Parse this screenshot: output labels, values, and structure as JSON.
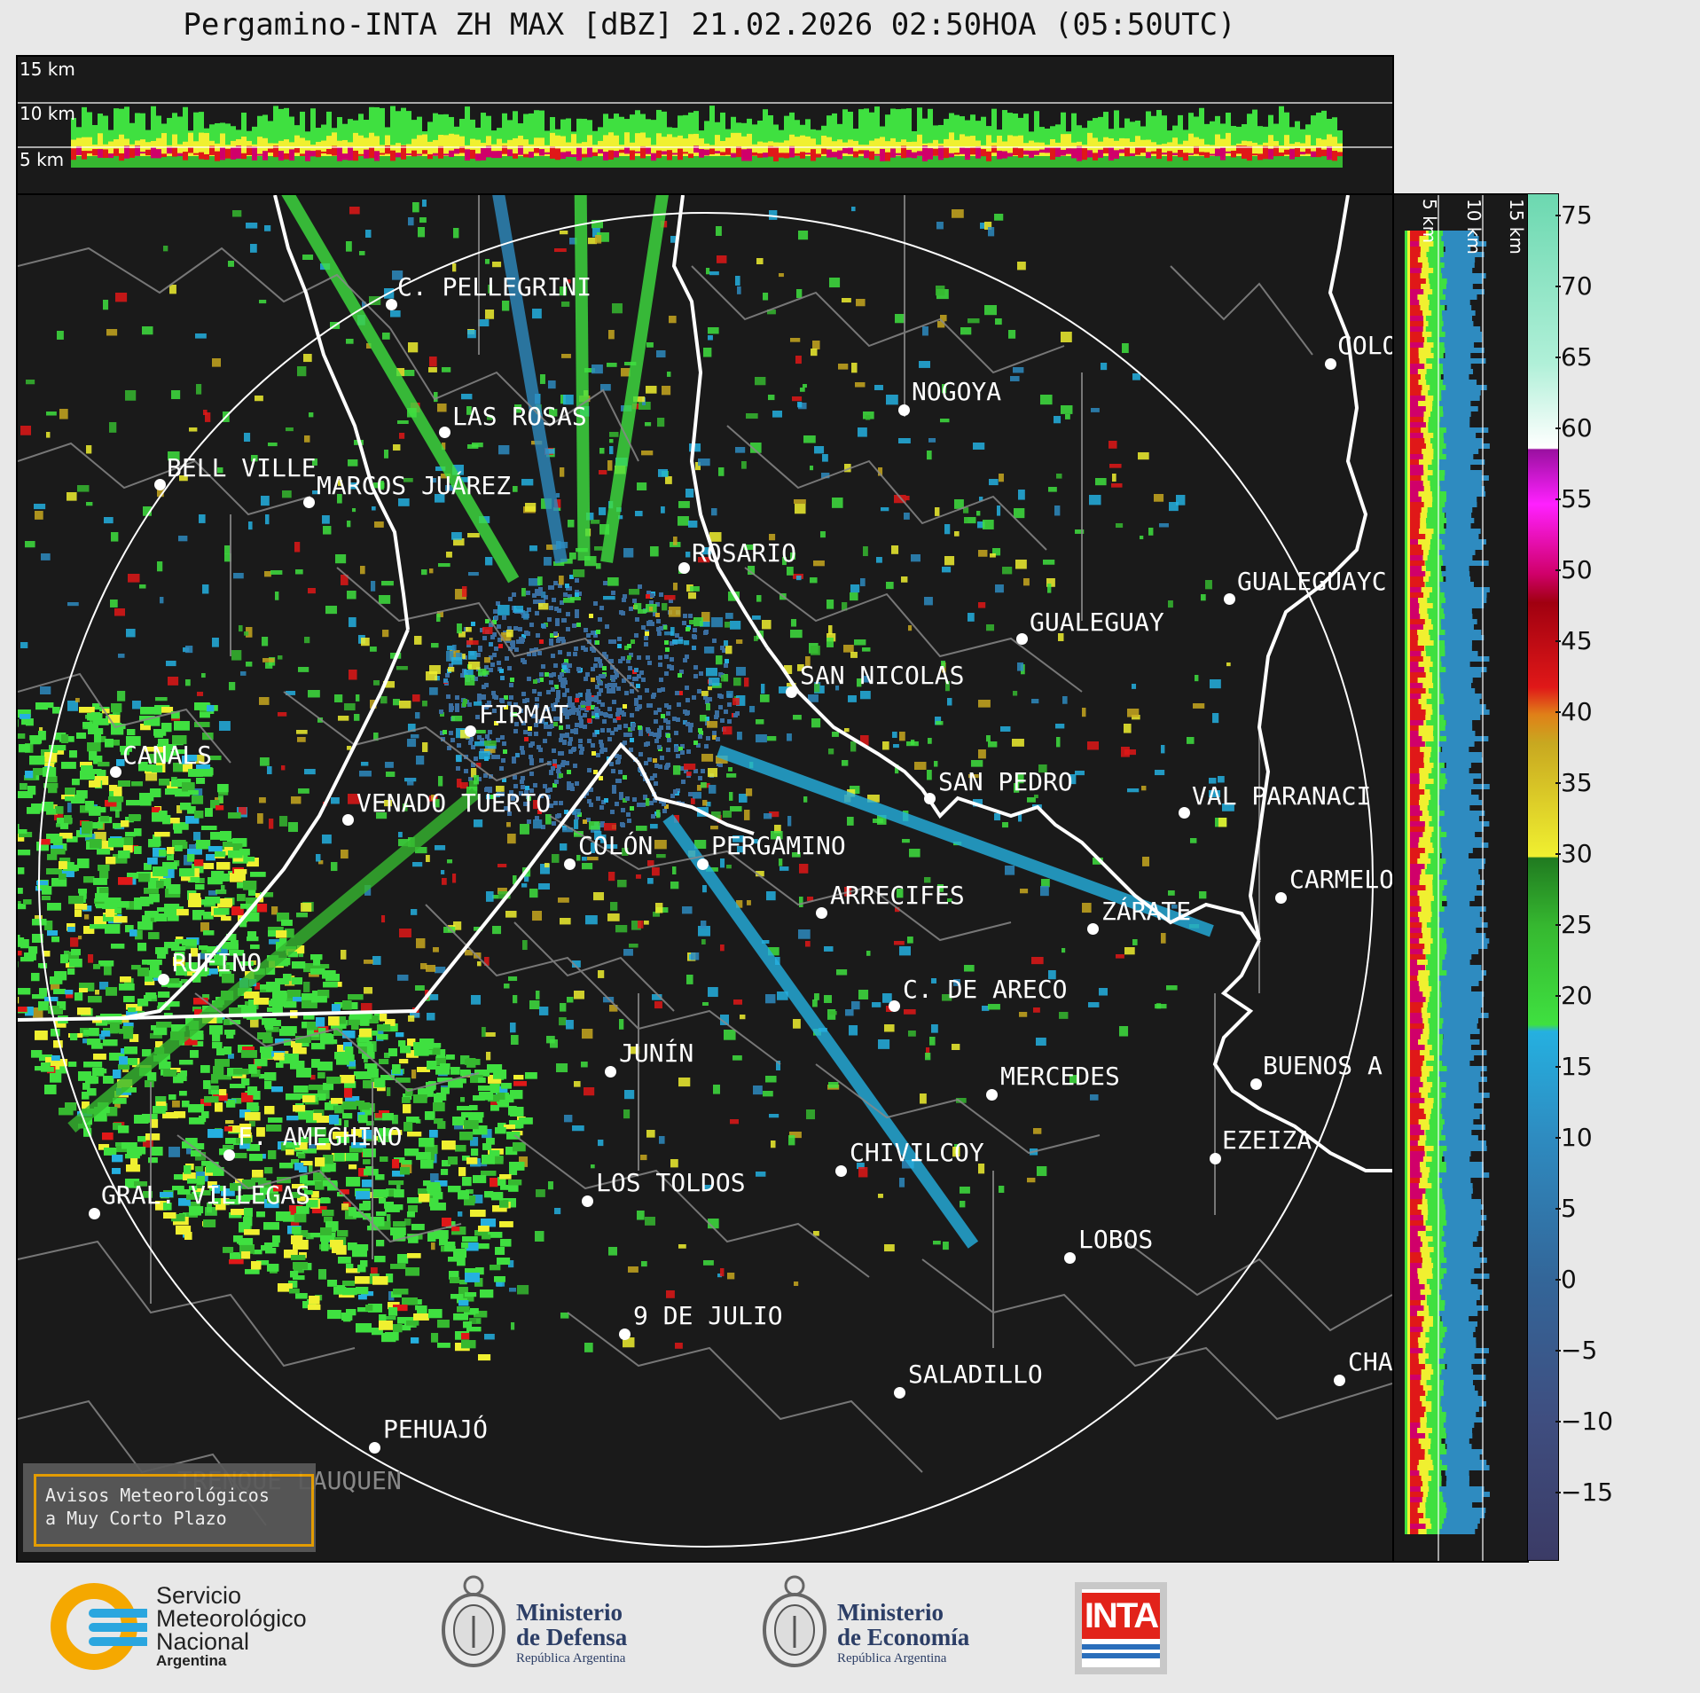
{
  "title": "Pergamino-INTA ZH MAX [dBZ] 21.02.2026 02:50HOA (05:50UTC)",
  "altitude_labels": [
    "15 km",
    "10 km",
    "5 km"
  ],
  "colorbar": {
    "ticks": [
      "75",
      "70",
      "65",
      "60",
      "55",
      "50",
      "45",
      "40",
      "35",
      "30",
      "25",
      "20",
      "15",
      "10",
      "5",
      "0",
      "−5",
      "−10",
      "−15"
    ],
    "stops": [
      {
        "v": -20,
        "c": "#3b3b66"
      },
      {
        "v": -10,
        "c": "#3f4e80"
      },
      {
        "v": 0,
        "c": "#336699"
      },
      {
        "v": 10,
        "c": "#2e8bc0"
      },
      {
        "v": 17.5,
        "c": "#25b0e0"
      },
      {
        "v": 18,
        "c": "#3fe040"
      },
      {
        "v": 25,
        "c": "#36b830"
      },
      {
        "v": 29.9,
        "c": "#207a20"
      },
      {
        "v": 30,
        "c": "#f0f030"
      },
      {
        "v": 38,
        "c": "#c8a820"
      },
      {
        "v": 40,
        "c": "#e08018"
      },
      {
        "v": 42,
        "c": "#e01818"
      },
      {
        "v": 48,
        "c": "#a00010"
      },
      {
        "v": 50,
        "c": "#d0006a"
      },
      {
        "v": 55,
        "c": "#ff20ff"
      },
      {
        "v": 58.9,
        "c": "#9a10a0"
      },
      {
        "v": 59,
        "c": "#ffffff"
      },
      {
        "v": 65,
        "c": "#b0f0d8"
      },
      {
        "v": 77,
        "c": "#6cd8b0"
      }
    ]
  },
  "cities": [
    {
      "name": "C. PELLEGRINI"
    },
    {
      "name": "LAS ROSAS"
    },
    {
      "name": "NOGOYA"
    },
    {
      "name": "BELL VILLE"
    },
    {
      "name": "MARCOS JUÁREZ"
    },
    {
      "name": "ROSARIO"
    },
    {
      "name": "GUALEGUAY"
    },
    {
      "name": "GUALEGUAYC"
    },
    {
      "name": "COLO"
    },
    {
      "name": "SAN NICOLAS"
    },
    {
      "name": "FIRMAT"
    },
    {
      "name": "CANALS"
    },
    {
      "name": "SAN PEDRO"
    },
    {
      "name": "VENADO TUERTO"
    },
    {
      "name": "VAL PARANACI"
    },
    {
      "name": "COLÓN"
    },
    {
      "name": "PERGAMINO"
    },
    {
      "name": "CARMELO"
    },
    {
      "name": "ARRECIFES"
    },
    {
      "name": "ZÁRATE"
    },
    {
      "name": "RUFINO"
    },
    {
      "name": "C. DE ARECO"
    },
    {
      "name": "JUNÍN"
    },
    {
      "name": "MERCEDES"
    },
    {
      "name": "BUENOS A"
    },
    {
      "name": "F. AMEGHINO"
    },
    {
      "name": "CHIVILCOY"
    },
    {
      "name": "EZEIZA"
    },
    {
      "name": "GRAL. VILLEGAS"
    },
    {
      "name": "LOS TOLDOS"
    },
    {
      "name": "LOBOS"
    },
    {
      "name": "9 DE JULIO"
    },
    {
      "name": "SALADILLO"
    },
    {
      "name": "CHA"
    },
    {
      "name": "PEHUAJÓ"
    },
    {
      "name": "TRENQUE LAUQUEN"
    }
  ],
  "warning_box": {
    "line1": "Avisos Meteorológicos",
    "line2": "a Muy Corto Plazo"
  },
  "logos": {
    "smn": {
      "line1": "Servicio",
      "line2": "Meteorológico",
      "line3": "Nacional",
      "line4": "Argentina"
    },
    "defensa": {
      "line1": "Ministerio",
      "line2": "de Defensa",
      "line3": "República Argentina"
    },
    "economia": {
      "line1": "Ministerio",
      "line2": "de Economía",
      "line3": "República Argentina"
    },
    "inta": {
      "text": "INTA"
    }
  },
  "colors": {
    "background": "#e8e8e8",
    "map": "#1a1a1a",
    "borders": "#888888",
    "coast": "#ffffff",
    "smn_orange": "#f5a800",
    "smn_blue": "#2aa6df",
    "inta_red": "#e2231a"
  }
}
